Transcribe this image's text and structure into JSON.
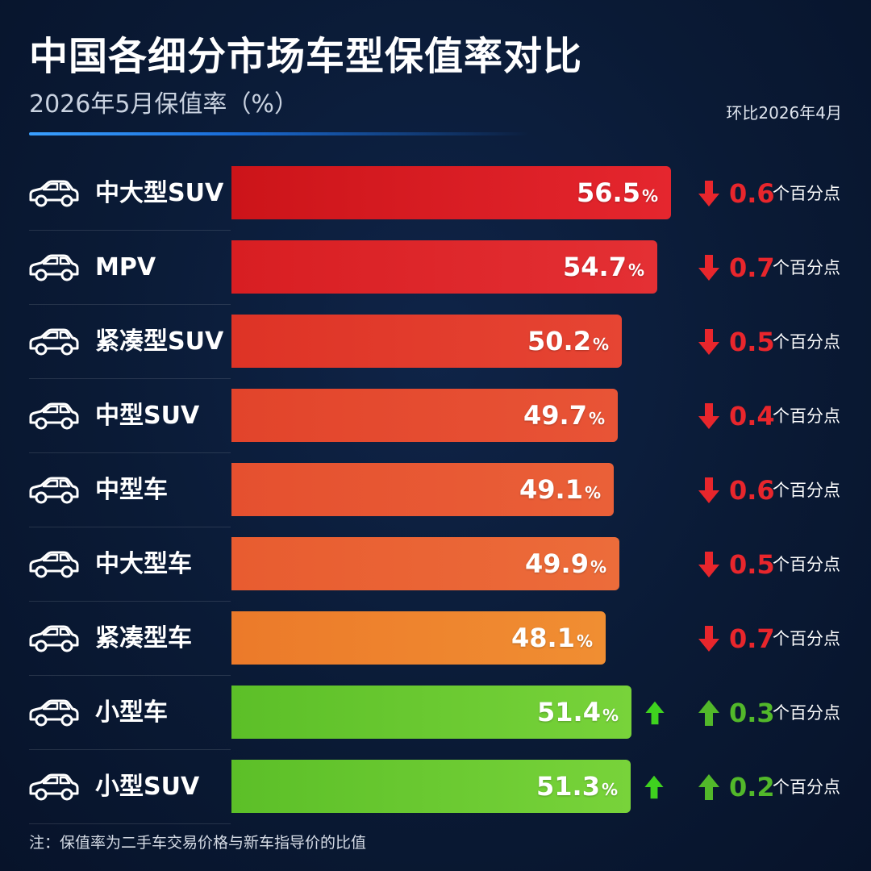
{
  "title": "中国各细分市场车型保值率对比",
  "subtitle": "2026年5月保值率（%）",
  "compare_note": "环比2026年4月",
  "footnote": "注：保值率为二手车交易价格与新车指导价的比值",
  "percent_sign": "%",
  "change_unit": "个百分点",
  "icons": {
    "row_icon": "car-icon",
    "down": "down-arrow-icon",
    "up": "up-arrow-icon"
  },
  "colors": {
    "down": "#e8262c",
    "up": "#52b82a",
    "bar_up_arrow": "#3fd21f"
  },
  "chart_data": {
    "type": "bar",
    "orientation": "horizontal",
    "title": "中国各细分市场车型保值率对比",
    "subtitle": "2026年5月保值率（%）",
    "xlim": [
      0,
      60
    ],
    "categories": [
      "中大型SUV",
      "MPV",
      "紧凑型SUV",
      "中型SUV",
      "中型车",
      "中大型车",
      "紧凑型车",
      "小型车",
      "小型SUV"
    ],
    "values": [
      56.5,
      54.7,
      50.2,
      49.7,
      49.1,
      49.9,
      48.1,
      51.4,
      51.3
    ],
    "change_label": "环比2026年4月",
    "change": [
      {
        "direction": "down",
        "value": 0.6
      },
      {
        "direction": "down",
        "value": 0.7
      },
      {
        "direction": "down",
        "value": 0.5
      },
      {
        "direction": "down",
        "value": 0.4
      },
      {
        "direction": "down",
        "value": 0.6
      },
      {
        "direction": "down",
        "value": 0.5
      },
      {
        "direction": "down",
        "value": 0.7
      },
      {
        "direction": "up",
        "value": 0.3
      },
      {
        "direction": "up",
        "value": 0.2
      }
    ],
    "bar_colors": [
      "#cc1419",
      "#d81e22",
      "#de3326",
      "#e2442b",
      "#e5502f",
      "#e85c30",
      "#ec7a2a",
      "#5cbf28",
      "#5cbf28"
    ],
    "bar_colors_light": [
      "#e5262e",
      "#e43034",
      "#e64533",
      "#e85436",
      "#ea6038",
      "#ec6c3a",
      "#f08e32",
      "#78d33a",
      "#78d33a"
    ]
  }
}
